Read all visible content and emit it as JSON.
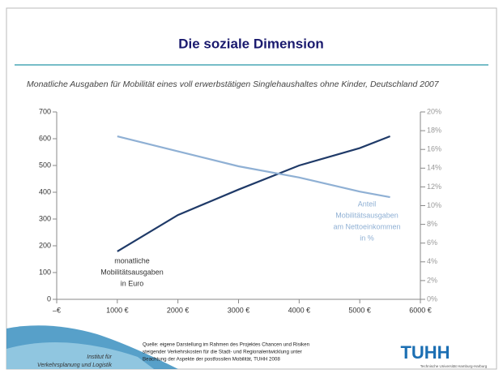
{
  "slide": {
    "title": "Die soziale Dimension"
  },
  "chart_data": {
    "type": "line",
    "title": "Monatliche Ausgaben für Mobilität eines voll erwerbstätigen Singlehaushaltes ohne Kinder, Deutschland 2007",
    "x": [
      1000,
      2000,
      3000,
      4000,
      5000,
      5500
    ],
    "series": [
      {
        "name": "monatliche Mobilitätsausgaben in Euro",
        "color": "#1f3a68",
        "values": [
          179,
          315,
          410,
          500,
          565,
          609
        ]
      },
      {
        "name": "Anteil Mobilitätsausgaben am Nettoeinkommen in %",
        "color": "#8fb0d4",
        "axis": "y2",
        "values": [
          17.4,
          15.8,
          14.2,
          13.0,
          11.5,
          10.9
        ]
      }
    ],
    "annotations": [
      {
        "lines": [
          "monatliche",
          "Mobilitätsausgaben",
          "in Euro"
        ]
      },
      {
        "lines": [
          "Anteil",
          "Mobilitätsausgaben",
          "am Nettoeinkommen",
          "in %"
        ]
      }
    ],
    "xlim": [
      0,
      6000
    ],
    "xticks": [
      {
        "value": 0,
        "label": "–€"
      },
      {
        "value": 1000,
        "label": "1000 €"
      },
      {
        "value": 2000,
        "label": "2000 €"
      },
      {
        "value": 3000,
        "label": "3000 €"
      },
      {
        "value": 4000,
        "label": "4000 €"
      },
      {
        "value": 5000,
        "label": "5000 €"
      },
      {
        "value": 6000,
        "label": "6000 €"
      }
    ],
    "ylim": [
      0,
      700
    ],
    "yticks": [
      0,
      100,
      200,
      300,
      400,
      500,
      600,
      700
    ],
    "y2lim": [
      0,
      20
    ],
    "y2ticks": [
      {
        "value": 0,
        "label": "0%"
      },
      {
        "value": 2,
        "label": "2%"
      },
      {
        "value": 4,
        "label": "4%"
      },
      {
        "value": 6,
        "label": "6%"
      },
      {
        "value": 8,
        "label": "8%"
      },
      {
        "value": 10,
        "label": "10%"
      },
      {
        "value": 12,
        "label": "12%"
      },
      {
        "value": 14,
        "label": "14%"
      },
      {
        "value": 16,
        "label": "16%"
      },
      {
        "value": 18,
        "label": "18%"
      },
      {
        "value": 20,
        "label": "20%"
      }
    ]
  },
  "footer": {
    "institute": [
      "Institut für",
      "Verkehrsplanung und Logistik"
    ],
    "source": [
      "Quelle: eigene Darstellung im Rahmen des Projektes Chancen und Risiken",
      "steigender Verkehrskosten für die Stadt- und Regionalentwicklung unter",
      "Beachtung der Aspekte der postfossilen Mobilität, TUHH 2008"
    ],
    "logo": "TUHH",
    "university": "Technische Universität Hamburg-Harburg"
  }
}
